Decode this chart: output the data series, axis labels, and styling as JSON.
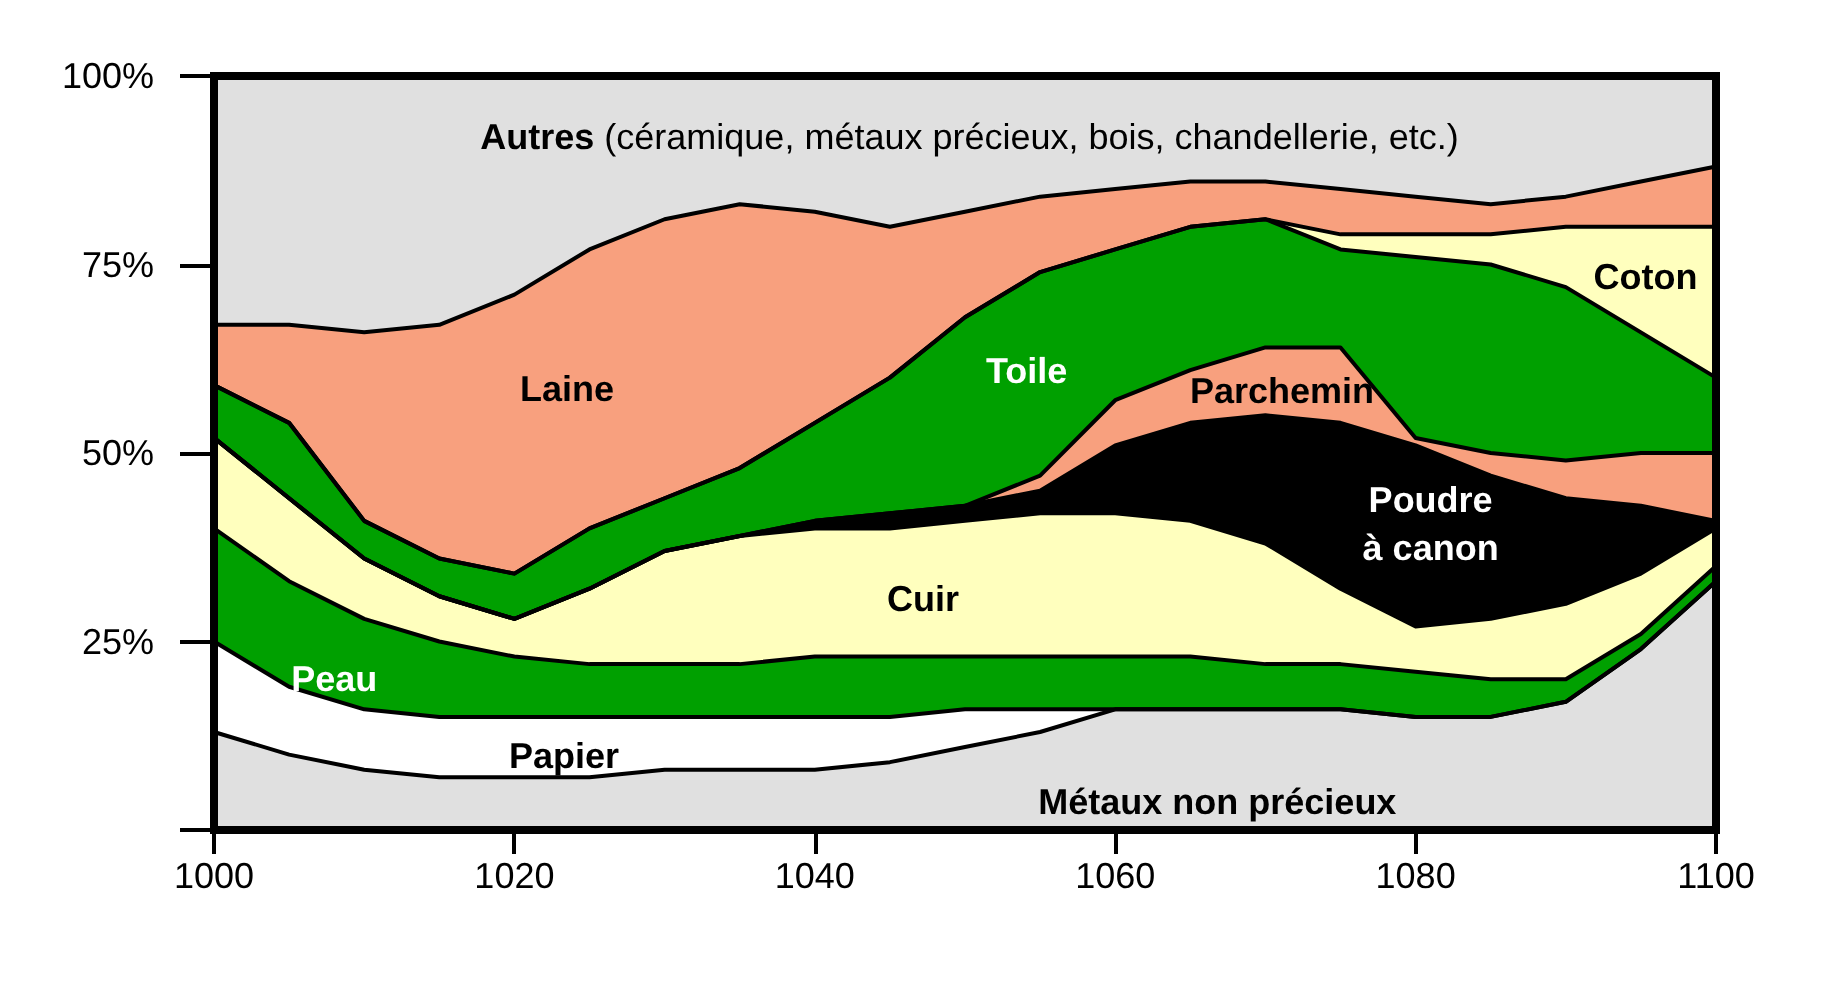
{
  "chart_data": {
    "type": "area",
    "stacked": true,
    "x": [
      1000,
      1005,
      1010,
      1015,
      1020,
      1025,
      1030,
      1035,
      1040,
      1045,
      1050,
      1055,
      1060,
      1065,
      1070,
      1075,
      1080,
      1085,
      1090,
      1095,
      1100
    ],
    "xlim": [
      1000,
      1100
    ],
    "xticks": [
      1000,
      1020,
      1040,
      1060,
      1080,
      1100
    ],
    "ylim": [
      0,
      100
    ],
    "yticks": [
      {
        "value": 0,
        "label": null
      },
      {
        "value": 25,
        "label": "25%"
      },
      {
        "value": 50,
        "label": "50%"
      },
      {
        "value": 75,
        "label": "75%"
      },
      {
        "value": 100,
        "label": "100%"
      }
    ],
    "series": [
      {
        "name": "Métaux non précieux",
        "color": "#e0e0e0",
        "values": [
          13,
          10,
          8,
          7,
          7,
          7,
          8,
          8,
          8,
          9,
          11,
          13,
          16,
          16,
          16,
          16,
          15,
          15,
          17,
          24,
          33
        ]
      },
      {
        "name": "Papier",
        "color": "#ffffff",
        "values": [
          12,
          9,
          8,
          8,
          8,
          8,
          7,
          7,
          7,
          6,
          5,
          3,
          0,
          0,
          0,
          0,
          0,
          0,
          0,
          0,
          0
        ]
      },
      {
        "name": "Peau",
        "color": "#00a000",
        "values": [
          15,
          14,
          12,
          10,
          8,
          7,
          7,
          7,
          8,
          8,
          7,
          7,
          7,
          7,
          6,
          6,
          6,
          5,
          3,
          2,
          2
        ]
      },
      {
        "name": "Cuir",
        "color": "#ffffbe",
        "values": [
          12,
          11,
          8,
          6,
          5,
          10,
          15,
          17,
          17,
          17,
          18,
          19,
          19,
          18,
          16,
          10,
          6,
          8,
          10,
          8,
          5
        ]
      },
      {
        "name": "Poudre à canon",
        "color": "#000000",
        "values": [
          0,
          0,
          0,
          0,
          0,
          0,
          0,
          0,
          1,
          2,
          2,
          3,
          9,
          13,
          17,
          22,
          24,
          19,
          14,
          9,
          1
        ]
      },
      {
        "name": "Parchemin",
        "color": "#f8a07e",
        "values": [
          0,
          0,
          0,
          0,
          0,
          0,
          0,
          0,
          0,
          0,
          0,
          2,
          6,
          7,
          9,
          10,
          1,
          3,
          5,
          7,
          9
        ]
      },
      {
        "name": "Toile",
        "color": "#00a000",
        "values": [
          7,
          10,
          5,
          5,
          6,
          8,
          7,
          9,
          13,
          18,
          25,
          27,
          20,
          19,
          17,
          13,
          24,
          25,
          23,
          16,
          10
        ]
      },
      {
        "name": "Coton",
        "color": "#ffffbe",
        "values": [
          0,
          0,
          0,
          0,
          0,
          0,
          0,
          0,
          0,
          0,
          0,
          0,
          0,
          0,
          0,
          2,
          3,
          4,
          8,
          14,
          20
        ]
      },
      {
        "name": "Laine",
        "color": "#f8a07e",
        "values": [
          8,
          13,
          25,
          31,
          37,
          37,
          37,
          35,
          28,
          20,
          14,
          10,
          8,
          6,
          5,
          6,
          5,
          4,
          4,
          6,
          8
        ]
      },
      {
        "name": "Autres (céramique, métaux précieux, bois, chandellerie, etc.)",
        "color": "#e0e0e0",
        "values": [
          33,
          33,
          34,
          33,
          29,
          23,
          19,
          17,
          18,
          20,
          18,
          16,
          15,
          14,
          14,
          15,
          16,
          17,
          16,
          14,
          12
        ]
      }
    ]
  }
}
